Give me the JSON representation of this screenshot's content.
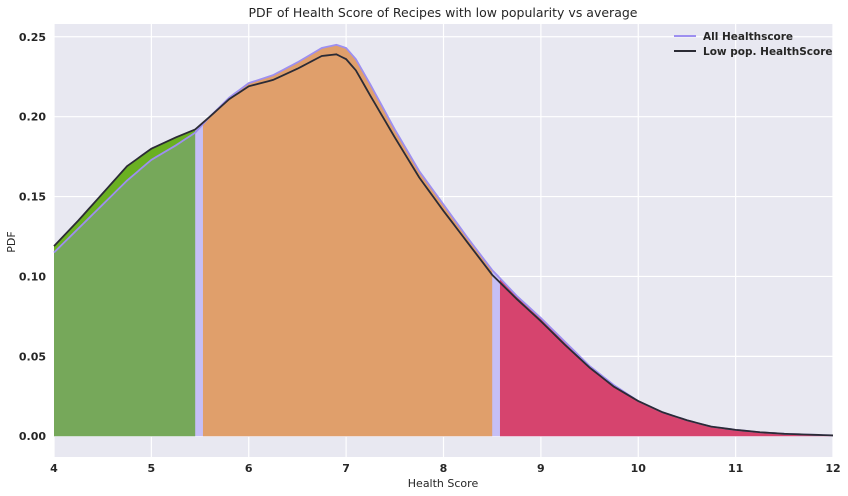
{
  "chart_data": {
    "type": "area",
    "title": "PDF of Health Score of Recipes with low popularity vs average",
    "xlabel": "Health Score",
    "ylabel": "PDF",
    "xlim": [
      4,
      12
    ],
    "ylim": [
      -0.013,
      0.258
    ],
    "x_ticks": [
      4,
      5,
      6,
      7,
      8,
      9,
      10,
      11,
      12
    ],
    "y_ticks": [
      0.0,
      0.05,
      0.1,
      0.15,
      0.2,
      0.25
    ],
    "x_tick_labels": [
      "4",
      "5",
      "6",
      "7",
      "8",
      "9",
      "10",
      "11",
      "12"
    ],
    "y_tick_labels": [
      "0.00",
      "0.05",
      "0.10",
      "0.15",
      "0.20",
      "0.25"
    ],
    "grid": true,
    "legend_position": "top-right",
    "series": [
      {
        "name": "All Healthscore",
        "color": "#9d8ff0",
        "fill": "#c6bff5",
        "x": [
          4.0,
          4.25,
          4.5,
          4.75,
          5.0,
          5.25,
          5.45,
          5.6,
          5.8,
          6.0,
          6.25,
          6.5,
          6.75,
          6.9,
          7.0,
          7.1,
          7.25,
          7.5,
          7.75,
          8.0,
          8.25,
          8.5,
          8.75,
          9.0,
          9.25,
          9.5,
          9.75,
          10.0,
          10.25,
          10.5,
          10.75,
          11.0,
          11.25,
          11.5,
          11.75,
          12.0
        ],
        "y": [
          0.115,
          0.13,
          0.145,
          0.16,
          0.173,
          0.182,
          0.19,
          0.2,
          0.212,
          0.221,
          0.226,
          0.234,
          0.243,
          0.245,
          0.243,
          0.236,
          0.22,
          0.192,
          0.166,
          0.145,
          0.124,
          0.104,
          0.088,
          0.074,
          0.059,
          0.044,
          0.032,
          0.022,
          0.015,
          0.01,
          0.006,
          0.004,
          0.0025,
          0.0015,
          0.001,
          0.0005
        ]
      },
      {
        "name": "Low pop. HealthScore",
        "color": "#2b2b35",
        "x": [
          4.0,
          4.25,
          4.5,
          4.75,
          5.0,
          5.25,
          5.45,
          5.6,
          5.8,
          6.0,
          6.25,
          6.5,
          6.75,
          6.9,
          7.0,
          7.1,
          7.25,
          7.5,
          7.75,
          8.0,
          8.25,
          8.5,
          8.75,
          9.0,
          9.25,
          9.5,
          9.75,
          10.0,
          10.25,
          10.5,
          10.75,
          11.0,
          11.25,
          11.5,
          11.75,
          12.0
        ],
        "y": [
          0.119,
          0.135,
          0.152,
          0.169,
          0.18,
          0.187,
          0.192,
          0.2,
          0.211,
          0.219,
          0.223,
          0.23,
          0.238,
          0.239,
          0.236,
          0.229,
          0.213,
          0.187,
          0.162,
          0.141,
          0.121,
          0.101,
          0.086,
          0.072,
          0.057,
          0.043,
          0.031,
          0.022,
          0.015,
          0.01,
          0.006,
          0.004,
          0.0025,
          0.0015,
          0.001,
          0.0005
        ]
      }
    ],
    "shaded_regions": [
      {
        "from": 4.0,
        "to": 5.45,
        "color": "#76a85a"
      },
      {
        "from": 5.53,
        "to": 8.5,
        "color": "#e09f6b"
      },
      {
        "from": 8.58,
        "to": 12.0,
        "color": "#d6446e"
      }
    ],
    "colors": {
      "plot_background": "#e8e8f1",
      "grid": "#ffffff",
      "green_highlight": "#6ab021"
    }
  }
}
